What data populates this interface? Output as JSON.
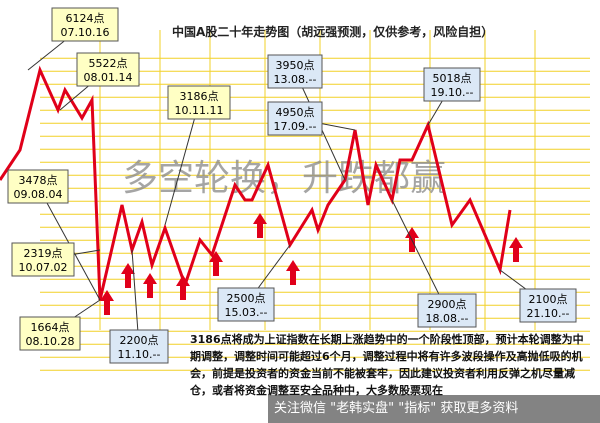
{
  "chart_data": {
    "type": "line",
    "title": "中国A股二十年走势图（胡远强预测，仅供参考，风险自担）",
    "watermark": "多空轮换，升跌都赢",
    "line_color": "#e0001a",
    "grid_color": "#f2d027",
    "arrow_color": "#e0001a",
    "annotations": [
      {
        "value": "6124点",
        "date": "07.10.16",
        "style": "yellow"
      },
      {
        "value": "5522点",
        "date": "08.01.14",
        "style": "yellow"
      },
      {
        "value": "3186点",
        "date": "10.11.11",
        "style": "yellow"
      },
      {
        "value": "3478点",
        "date": "09.08.04",
        "style": "yellow"
      },
      {
        "value": "2319点",
        "date": "10.07.02",
        "style": "yellow"
      },
      {
        "value": "1664点",
        "date": "08.10.28",
        "style": "yellow"
      },
      {
        "value": "2200点",
        "date": "11.10.--",
        "style": "blue"
      },
      {
        "value": "2500点",
        "date": "15.03.--",
        "style": "blue"
      },
      {
        "value": "3950点",
        "date": "13.08.--",
        "style": "blue"
      },
      {
        "value": "4950点",
        "date": "17.09.--",
        "style": "blue"
      },
      {
        "value": "5018点",
        "date": "19.10.--",
        "style": "blue"
      },
      {
        "value": "2900点",
        "date": "18.08.--",
        "style": "blue"
      },
      {
        "value": "2100点",
        "date": "21.10.--",
        "style": "blue"
      }
    ]
  },
  "note": {
    "lead": "3186",
    "text": "点将成为上证指数在长期上涨趋势中的一个阶段性顶部，预计本轮调整为中期调整，调整时间可能超过6个月，调整过程中将有许多波段操作及高抛低吸的机会，前提是投资者的资金当前不能被套牢，因此建议投资者利用反弹之机尽量减仓，或者将资金调整至安全品种中，大多数股票现在"
  },
  "footer": "关注微信 \"老韩实盘\" \"指标\" 获取更多资料"
}
